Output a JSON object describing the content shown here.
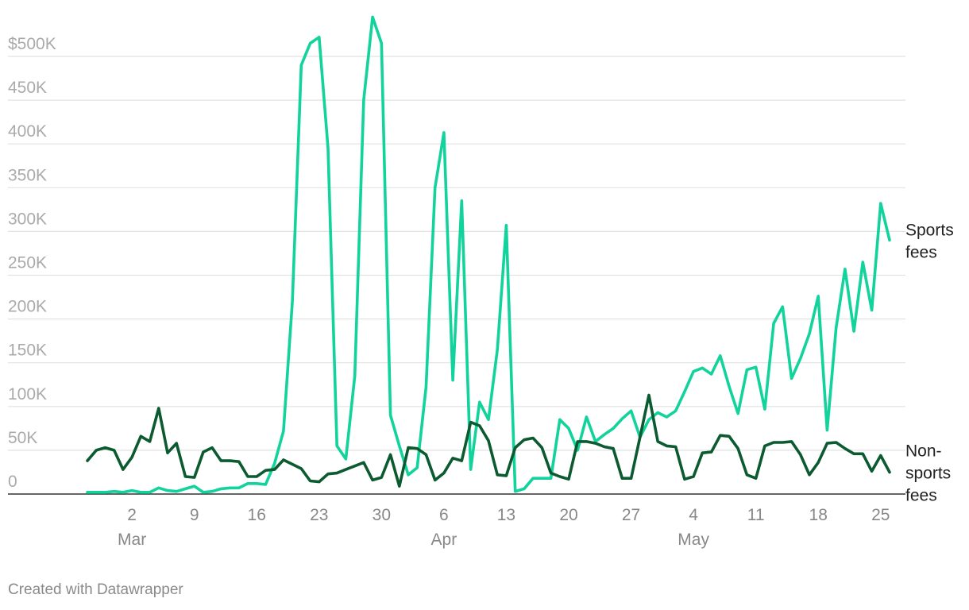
{
  "credit": "Created with Datawrapper",
  "colors": {
    "sports": "#11d39b",
    "non_sports": "#0b5a30"
  },
  "chart_data": {
    "type": "line",
    "title": "",
    "xlabel": "",
    "ylabel": "",
    "ylim": [
      0,
      500000
    ],
    "y_ticks": [
      {
        "value": 0,
        "label": "0"
      },
      {
        "value": 50000,
        "label": "50K"
      },
      {
        "value": 100000,
        "label": "100K"
      },
      {
        "value": 150000,
        "label": "150K"
      },
      {
        "value": 200000,
        "label": "200K"
      },
      {
        "value": 250000,
        "label": "250K"
      },
      {
        "value": 300000,
        "label": "300K"
      },
      {
        "value": 350000,
        "label": "350K"
      },
      {
        "value": 400000,
        "label": "400K"
      },
      {
        "value": 450000,
        "label": "450K"
      },
      {
        "value": 500000,
        "label": "$500K"
      }
    ],
    "x_ticks": [
      {
        "date": "03-02",
        "label": "2",
        "month": "Mar"
      },
      {
        "date": "03-09",
        "label": "9"
      },
      {
        "date": "03-16",
        "label": "16"
      },
      {
        "date": "03-23",
        "label": "23"
      },
      {
        "date": "03-30",
        "label": "30"
      },
      {
        "date": "04-06",
        "label": "6",
        "month": "Apr"
      },
      {
        "date": "04-13",
        "label": "13"
      },
      {
        "date": "04-20",
        "label": "20"
      },
      {
        "date": "04-27",
        "label": "27"
      },
      {
        "date": "05-04",
        "label": "4",
        "month": "May"
      },
      {
        "date": "05-11",
        "label": "11"
      },
      {
        "date": "05-18",
        "label": "18"
      },
      {
        "date": "05-25",
        "label": "25"
      }
    ],
    "x_range": [
      "02-26",
      "05-26"
    ],
    "grid": "horizontal",
    "series": [
      {
        "name": "Sports fees",
        "label_lines": [
          "Sports",
          "fees"
        ],
        "color": "#11d39b",
        "points": [
          [
            "02-26",
            2000
          ],
          [
            "02-27",
            2000
          ],
          [
            "02-28",
            2000
          ],
          [
            "02-29",
            3000
          ],
          [
            "03-01",
            2000
          ],
          [
            "03-02",
            4000
          ],
          [
            "03-03",
            2000
          ],
          [
            "03-04",
            2000
          ],
          [
            "03-05",
            7000
          ],
          [
            "03-06",
            4000
          ],
          [
            "03-07",
            3000
          ],
          [
            "03-08",
            6000
          ],
          [
            "03-09",
            9000
          ],
          [
            "03-10",
            2000
          ],
          [
            "03-11",
            3000
          ],
          [
            "03-12",
            6000
          ],
          [
            "03-13",
            7000
          ],
          [
            "03-14",
            7000
          ],
          [
            "03-15",
            12000
          ],
          [
            "03-16",
            12000
          ],
          [
            "03-17",
            11000
          ],
          [
            "03-18",
            35000
          ],
          [
            "03-19",
            72000
          ],
          [
            "03-20",
            220000
          ],
          [
            "03-21",
            490000
          ],
          [
            "03-22",
            515000
          ],
          [
            "03-23",
            522000
          ],
          [
            "03-24",
            395000
          ],
          [
            "03-25",
            55000
          ],
          [
            "03-26",
            40000
          ],
          [
            "03-27",
            135000
          ],
          [
            "03-28",
            450000
          ],
          [
            "03-29",
            545000
          ],
          [
            "03-30",
            515000
          ],
          [
            "03-31",
            90000
          ],
          [
            "04-01",
            55000
          ],
          [
            "04-02",
            22000
          ],
          [
            "04-03",
            30000
          ],
          [
            "04-04",
            122000
          ],
          [
            "04-05",
            350000
          ],
          [
            "04-06",
            413000
          ],
          [
            "04-07",
            130000
          ],
          [
            "04-08",
            335000
          ],
          [
            "04-09",
            28000
          ],
          [
            "04-10",
            105000
          ],
          [
            "04-11",
            85000
          ],
          [
            "04-12",
            165000
          ],
          [
            "04-13",
            307000
          ],
          [
            "04-14",
            3000
          ],
          [
            "04-15",
            6000
          ],
          [
            "04-16",
            18000
          ],
          [
            "04-17",
            18000
          ],
          [
            "04-18",
            18000
          ],
          [
            "04-19",
            85000
          ],
          [
            "04-20",
            75000
          ],
          [
            "04-21",
            50000
          ],
          [
            "04-22",
            88000
          ],
          [
            "04-23",
            60000
          ],
          [
            "04-24",
            68000
          ],
          [
            "04-25",
            75000
          ],
          [
            "04-26",
            86000
          ],
          [
            "04-27",
            95000
          ],
          [
            "04-28",
            65000
          ],
          [
            "04-29",
            85000
          ],
          [
            "04-30",
            93000
          ],
          [
            "05-01",
            88000
          ],
          [
            "05-02",
            95000
          ],
          [
            "05-03",
            117000
          ],
          [
            "05-04",
            140000
          ],
          [
            "05-05",
            144000
          ],
          [
            "05-06",
            137000
          ],
          [
            "05-07",
            158000
          ],
          [
            "05-08",
            123000
          ],
          [
            "05-09",
            92000
          ],
          [
            "05-10",
            142000
          ],
          [
            "05-11",
            145000
          ],
          [
            "05-12",
            97000
          ],
          [
            "05-13",
            195000
          ],
          [
            "05-14",
            214000
          ],
          [
            "05-15",
            132000
          ],
          [
            "05-16",
            155000
          ],
          [
            "05-17",
            183000
          ],
          [
            "05-18",
            226000
          ],
          [
            "05-19",
            73000
          ],
          [
            "05-20",
            190000
          ],
          [
            "05-21",
            257000
          ],
          [
            "05-22",
            186000
          ],
          [
            "05-23",
            265000
          ],
          [
            "05-24",
            210000
          ],
          [
            "05-25",
            332000
          ],
          [
            "05-26",
            290000
          ]
        ]
      },
      {
        "name": "Non-sports fees",
        "label_lines": [
          "Non-",
          "sports",
          "fees"
        ],
        "color": "#0b5a30",
        "points": [
          [
            "02-26",
            38000
          ],
          [
            "02-27",
            50000
          ],
          [
            "02-28",
            53000
          ],
          [
            "02-29",
            50000
          ],
          [
            "03-01",
            28000
          ],
          [
            "03-02",
            42000
          ],
          [
            "03-03",
            66000
          ],
          [
            "03-04",
            60000
          ],
          [
            "03-05",
            98000
          ],
          [
            "03-06",
            47000
          ],
          [
            "03-07",
            58000
          ],
          [
            "03-08",
            20000
          ],
          [
            "03-09",
            19000
          ],
          [
            "03-10",
            48000
          ],
          [
            "03-11",
            53000
          ],
          [
            "03-12",
            38000
          ],
          [
            "03-13",
            38000
          ],
          [
            "03-14",
            37000
          ],
          [
            "03-15",
            20000
          ],
          [
            "03-16",
            20000
          ],
          [
            "03-17",
            27000
          ],
          [
            "03-18",
            28000
          ],
          [
            "03-19",
            39000
          ],
          [
            "03-20",
            34000
          ],
          [
            "03-21",
            29000
          ],
          [
            "03-22",
            15000
          ],
          [
            "03-23",
            14000
          ],
          [
            "03-24",
            23000
          ],
          [
            "03-25",
            24000
          ],
          [
            "03-26",
            28000
          ],
          [
            "03-27",
            32000
          ],
          [
            "03-28",
            36000
          ],
          [
            "03-29",
            16000
          ],
          [
            "03-30",
            19000
          ],
          [
            "03-31",
            45000
          ],
          [
            "04-01",
            9000
          ],
          [
            "04-02",
            53000
          ],
          [
            "04-03",
            52000
          ],
          [
            "04-04",
            45000
          ],
          [
            "04-05",
            16000
          ],
          [
            "04-06",
            24000
          ],
          [
            "04-07",
            41000
          ],
          [
            "04-08",
            38000
          ],
          [
            "04-09",
            82000
          ],
          [
            "04-10",
            78000
          ],
          [
            "04-11",
            61000
          ],
          [
            "04-12",
            22000
          ],
          [
            "04-13",
            21000
          ],
          [
            "04-14",
            53000
          ],
          [
            "04-15",
            62000
          ],
          [
            "04-16",
            64000
          ],
          [
            "04-17",
            53000
          ],
          [
            "04-18",
            24000
          ],
          [
            "04-19",
            20000
          ],
          [
            "04-20",
            17000
          ],
          [
            "04-21",
            60000
          ],
          [
            "04-22",
            60000
          ],
          [
            "04-23",
            58000
          ],
          [
            "04-24",
            54000
          ],
          [
            "04-25",
            52000
          ],
          [
            "04-26",
            18000
          ],
          [
            "04-27",
            18000
          ],
          [
            "04-28",
            65000
          ],
          [
            "04-29",
            113000
          ],
          [
            "04-30",
            60000
          ],
          [
            "05-01",
            55000
          ],
          [
            "05-02",
            54000
          ],
          [
            "05-03",
            17000
          ],
          [
            "05-04",
            20000
          ],
          [
            "05-05",
            47000
          ],
          [
            "05-06",
            48000
          ],
          [
            "05-07",
            67000
          ],
          [
            "05-08",
            66000
          ],
          [
            "05-09",
            52000
          ],
          [
            "05-10",
            22000
          ],
          [
            "05-11",
            18000
          ],
          [
            "05-12",
            55000
          ],
          [
            "05-13",
            59000
          ],
          [
            "05-14",
            59000
          ],
          [
            "05-15",
            60000
          ],
          [
            "05-16",
            45000
          ],
          [
            "05-17",
            22000
          ],
          [
            "05-18",
            36000
          ],
          [
            "05-19",
            58000
          ],
          [
            "05-20",
            59000
          ],
          [
            "05-21",
            52000
          ],
          [
            "05-22",
            46000
          ],
          [
            "05-23",
            46000
          ],
          [
            "05-24",
            26000
          ],
          [
            "05-25",
            44000
          ],
          [
            "05-26",
            25000
          ]
        ]
      }
    ]
  }
}
